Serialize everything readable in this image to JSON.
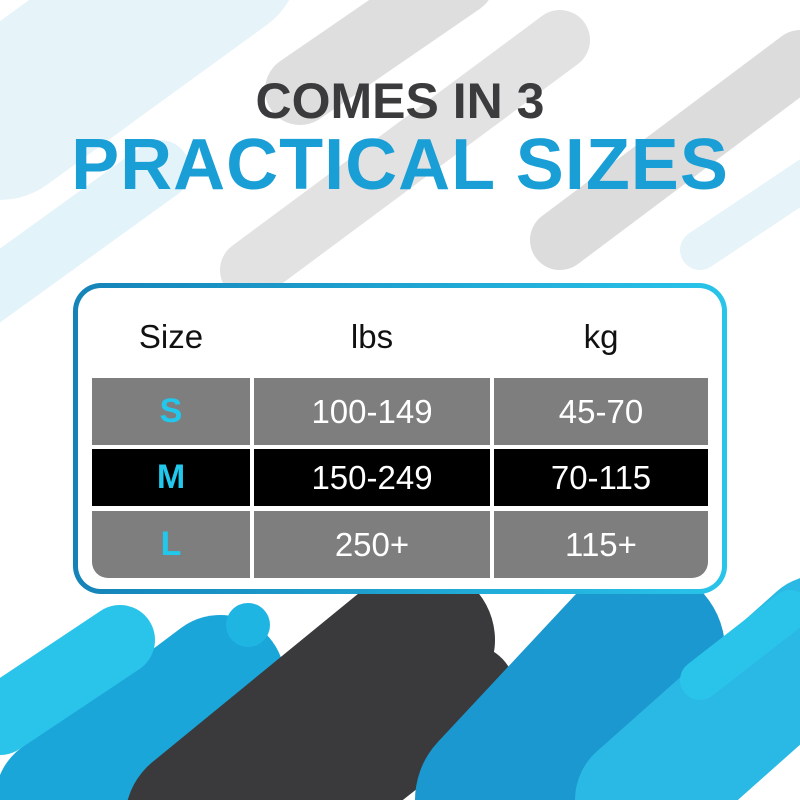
{
  "heading": {
    "line1": "COMES IN 3",
    "line2": "PRACTICAL SIZES"
  },
  "colors": {
    "accent": "#1a9ed6",
    "size_letter": "#22c8ec",
    "row_gray": "#7e7e7e",
    "row_dark": "#000000",
    "heading_dark": "#3b3b3d"
  },
  "table": {
    "headers": [
      "Size",
      "lbs",
      "kg"
    ],
    "rows": [
      {
        "size": "S",
        "lbs": "100-149",
        "kg": "45-70"
      },
      {
        "size": "M",
        "lbs": "150-249",
        "kg": "70-115"
      },
      {
        "size": "L",
        "lbs": "250+",
        "kg": "115+"
      }
    ]
  }
}
